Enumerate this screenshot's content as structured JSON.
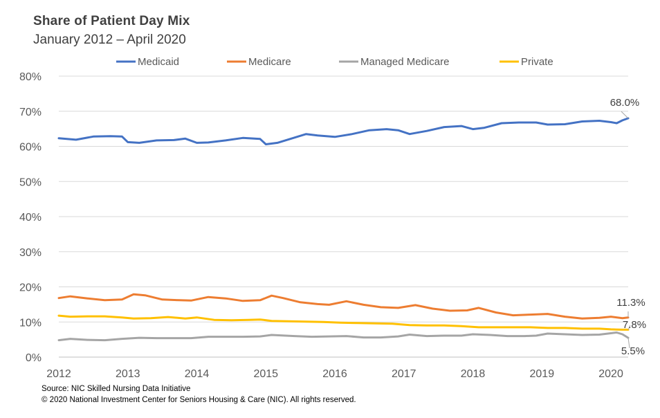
{
  "chart_data": {
    "type": "line",
    "title": "Share of Patient Day Mix",
    "subtitle": "January  2012 – April 2020",
    "x_start": "2012-01",
    "x_end": "2020-04",
    "x_tick_labels": [
      "2012",
      "2013",
      "2014",
      "2015",
      "2016",
      "2017",
      "2018",
      "2019",
      "2020"
    ],
    "ylim": [
      0,
      80
    ],
    "y_tick_labels": [
      "0%",
      "10%",
      "20%",
      "30%",
      "40%",
      "50%",
      "60%",
      "70%",
      "80%"
    ],
    "grid": true,
    "legend_position": "top",
    "series": [
      {
        "name": "Medicaid",
        "color": "#4472C4",
        "points": [
          [
            "2012-01",
            62.3
          ],
          [
            "2012-04",
            61.9
          ],
          [
            "2012-07",
            62.8
          ],
          [
            "2012-10",
            62.9
          ],
          [
            "2012-12",
            62.8
          ],
          [
            "2013-01",
            61.2
          ],
          [
            "2013-03",
            61.0
          ],
          [
            "2013-06",
            61.7
          ],
          [
            "2013-09",
            61.8
          ],
          [
            "2013-11",
            62.2
          ],
          [
            "2014-01",
            61.0
          ],
          [
            "2014-03",
            61.1
          ],
          [
            "2014-06",
            61.7
          ],
          [
            "2014-09",
            62.4
          ],
          [
            "2014-12",
            62.1
          ],
          [
            "2015-01",
            60.6
          ],
          [
            "2015-03",
            61.0
          ],
          [
            "2015-06",
            62.5
          ],
          [
            "2015-08",
            63.5
          ],
          [
            "2015-10",
            63.1
          ],
          [
            "2016-01",
            62.7
          ],
          [
            "2016-04",
            63.5
          ],
          [
            "2016-07",
            64.6
          ],
          [
            "2016-10",
            64.9
          ],
          [
            "2016-12",
            64.6
          ],
          [
            "2017-02",
            63.5
          ],
          [
            "2017-05",
            64.4
          ],
          [
            "2017-08",
            65.5
          ],
          [
            "2017-11",
            65.8
          ],
          [
            "2018-01",
            64.9
          ],
          [
            "2018-03",
            65.3
          ],
          [
            "2018-06",
            66.6
          ],
          [
            "2018-09",
            66.8
          ],
          [
            "2018-12",
            66.8
          ],
          [
            "2019-02",
            66.2
          ],
          [
            "2019-05",
            66.3
          ],
          [
            "2019-08",
            67.1
          ],
          [
            "2019-11",
            67.3
          ],
          [
            "2020-01",
            66.9
          ],
          [
            "2020-02",
            66.6
          ],
          [
            "2020-03",
            67.4
          ],
          [
            "2020-04",
            68.0
          ]
        ]
      },
      {
        "name": "Medicare",
        "color": "#ED7D31",
        "points": [
          [
            "2012-01",
            16.8
          ],
          [
            "2012-03",
            17.3
          ],
          [
            "2012-06",
            16.7
          ],
          [
            "2012-09",
            16.2
          ],
          [
            "2012-12",
            16.4
          ],
          [
            "2013-02",
            17.9
          ],
          [
            "2013-04",
            17.6
          ],
          [
            "2013-07",
            16.4
          ],
          [
            "2013-10",
            16.2
          ],
          [
            "2013-12",
            16.1
          ],
          [
            "2014-03",
            17.1
          ],
          [
            "2014-06",
            16.7
          ],
          [
            "2014-09",
            16.0
          ],
          [
            "2014-12",
            16.2
          ],
          [
            "2015-02",
            17.5
          ],
          [
            "2015-04",
            16.8
          ],
          [
            "2015-07",
            15.6
          ],
          [
            "2015-10",
            15.1
          ],
          [
            "2015-12",
            14.9
          ],
          [
            "2016-03",
            15.9
          ],
          [
            "2016-06",
            14.9
          ],
          [
            "2016-09",
            14.2
          ],
          [
            "2016-12",
            14.0
          ],
          [
            "2017-03",
            14.8
          ],
          [
            "2017-06",
            13.8
          ],
          [
            "2017-09",
            13.2
          ],
          [
            "2017-12",
            13.3
          ],
          [
            "2018-02",
            14.0
          ],
          [
            "2018-05",
            12.7
          ],
          [
            "2018-08",
            11.9
          ],
          [
            "2018-11",
            12.1
          ],
          [
            "2019-02",
            12.3
          ],
          [
            "2019-05",
            11.5
          ],
          [
            "2019-08",
            11.0
          ],
          [
            "2019-11",
            11.2
          ],
          [
            "2020-01",
            11.5
          ],
          [
            "2020-03",
            11.1
          ],
          [
            "2020-04",
            11.3
          ]
        ]
      },
      {
        "name": "Managed Medicare",
        "color": "#A5A5A5",
        "points": [
          [
            "2012-01",
            4.8
          ],
          [
            "2012-03",
            5.2
          ],
          [
            "2012-06",
            4.9
          ],
          [
            "2012-09",
            4.8
          ],
          [
            "2012-12",
            5.2
          ],
          [
            "2013-03",
            5.5
          ],
          [
            "2013-06",
            5.4
          ],
          [
            "2013-09",
            5.4
          ],
          [
            "2013-12",
            5.4
          ],
          [
            "2014-03",
            5.8
          ],
          [
            "2014-06",
            5.8
          ],
          [
            "2014-09",
            5.8
          ],
          [
            "2014-12",
            5.9
          ],
          [
            "2015-02",
            6.3
          ],
          [
            "2015-06",
            6.0
          ],
          [
            "2015-09",
            5.8
          ],
          [
            "2015-12",
            5.9
          ],
          [
            "2016-03",
            6.0
          ],
          [
            "2016-06",
            5.6
          ],
          [
            "2016-09",
            5.6
          ],
          [
            "2016-12",
            5.9
          ],
          [
            "2017-02",
            6.4
          ],
          [
            "2017-05",
            6.0
          ],
          [
            "2017-08",
            6.1
          ],
          [
            "2017-11",
            6.1
          ],
          [
            "2018-01",
            6.5
          ],
          [
            "2018-04",
            6.3
          ],
          [
            "2018-07",
            6.0
          ],
          [
            "2018-10",
            6.0
          ],
          [
            "2018-12",
            6.1
          ],
          [
            "2019-02",
            6.7
          ],
          [
            "2019-05",
            6.5
          ],
          [
            "2019-08",
            6.3
          ],
          [
            "2019-11",
            6.4
          ],
          [
            "2020-01",
            6.8
          ],
          [
            "2020-02",
            7.0
          ],
          [
            "2020-03",
            6.5
          ],
          [
            "2020-04",
            5.5
          ]
        ]
      },
      {
        "name": "Private",
        "color": "#FFC000",
        "points": [
          [
            "2012-01",
            11.8
          ],
          [
            "2012-03",
            11.5
          ],
          [
            "2012-06",
            11.6
          ],
          [
            "2012-09",
            11.6
          ],
          [
            "2012-12",
            11.3
          ],
          [
            "2013-02",
            11.0
          ],
          [
            "2013-05",
            11.1
          ],
          [
            "2013-08",
            11.4
          ],
          [
            "2013-11",
            11.0
          ],
          [
            "2014-01",
            11.3
          ],
          [
            "2014-04",
            10.6
          ],
          [
            "2014-07",
            10.5
          ],
          [
            "2014-10",
            10.6
          ],
          [
            "2014-12",
            10.7
          ],
          [
            "2015-02",
            10.3
          ],
          [
            "2015-05",
            10.2
          ],
          [
            "2015-08",
            10.1
          ],
          [
            "2015-11",
            10.0
          ],
          [
            "2016-02",
            9.8
          ],
          [
            "2016-05",
            9.7
          ],
          [
            "2016-08",
            9.6
          ],
          [
            "2016-11",
            9.5
          ],
          [
            "2017-02",
            9.1
          ],
          [
            "2017-05",
            9.0
          ],
          [
            "2017-08",
            9.0
          ],
          [
            "2017-11",
            8.8
          ],
          [
            "2018-02",
            8.5
          ],
          [
            "2018-05",
            8.5
          ],
          [
            "2018-08",
            8.5
          ],
          [
            "2018-11",
            8.5
          ],
          [
            "2019-02",
            8.3
          ],
          [
            "2019-05",
            8.3
          ],
          [
            "2019-08",
            8.1
          ],
          [
            "2019-11",
            8.1
          ],
          [
            "2020-01",
            7.9
          ],
          [
            "2020-03",
            7.8
          ],
          [
            "2020-04",
            7.8
          ]
        ]
      }
    ],
    "annotations": [
      {
        "text": "68.0%",
        "series": "Medicaid"
      },
      {
        "text": "11.3%",
        "series": "Medicare"
      },
      {
        "text": "7.8%",
        "series": "Private"
      },
      {
        "text": "5.5%",
        "series": "Managed Medicare"
      }
    ]
  },
  "footnotes": {
    "source": "Source: NIC Skilled Nursing Data Initiative",
    "copyright": "© 2020 National Investment Center for Seniors Housing & Care (NIC).  All rights reserved."
  }
}
